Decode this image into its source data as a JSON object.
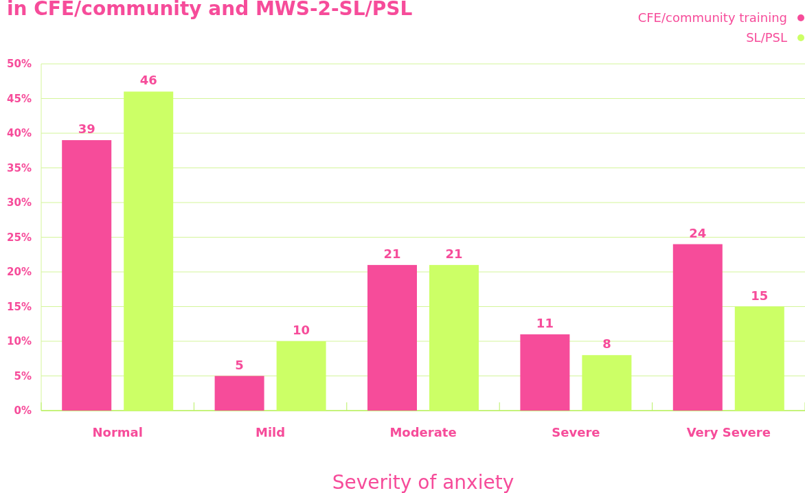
{
  "chart_data": {
    "type": "bar",
    "title": "in CFE/community and MWS-2-SL/PSL",
    "xlabel": "Severity of anxiety",
    "categories": [
      "Normal",
      "Mild",
      "Moderate",
      "Severe",
      "Very Severe"
    ],
    "series": [
      {
        "name": "CFE/community training",
        "color": "#f64c9a",
        "values": [
          39,
          5,
          21,
          11,
          24
        ]
      },
      {
        "name": "SL/PSL",
        "color": "#ccff66",
        "values": [
          46,
          10,
          21,
          8,
          15
        ]
      }
    ],
    "ylim": [
      0,
      50
    ],
    "yticks": [
      {
        "value": 0,
        "label": "0%"
      },
      {
        "value": 5,
        "label": "5%"
      },
      {
        "value": 10,
        "label": "10%"
      },
      {
        "value": 15,
        "label": "15%"
      },
      {
        "value": 20,
        "label": "20%"
      },
      {
        "value": 25,
        "label": "25%"
      },
      {
        "value": 30,
        "label": "30%"
      },
      {
        "value": 35,
        "label": "35%"
      },
      {
        "value": 40,
        "label": "40%"
      },
      {
        "value": 45,
        "label": "45%"
      },
      {
        "value": 50,
        "label": "50%"
      }
    ],
    "grid": "y",
    "legend": "top right",
    "data_labels": true
  }
}
